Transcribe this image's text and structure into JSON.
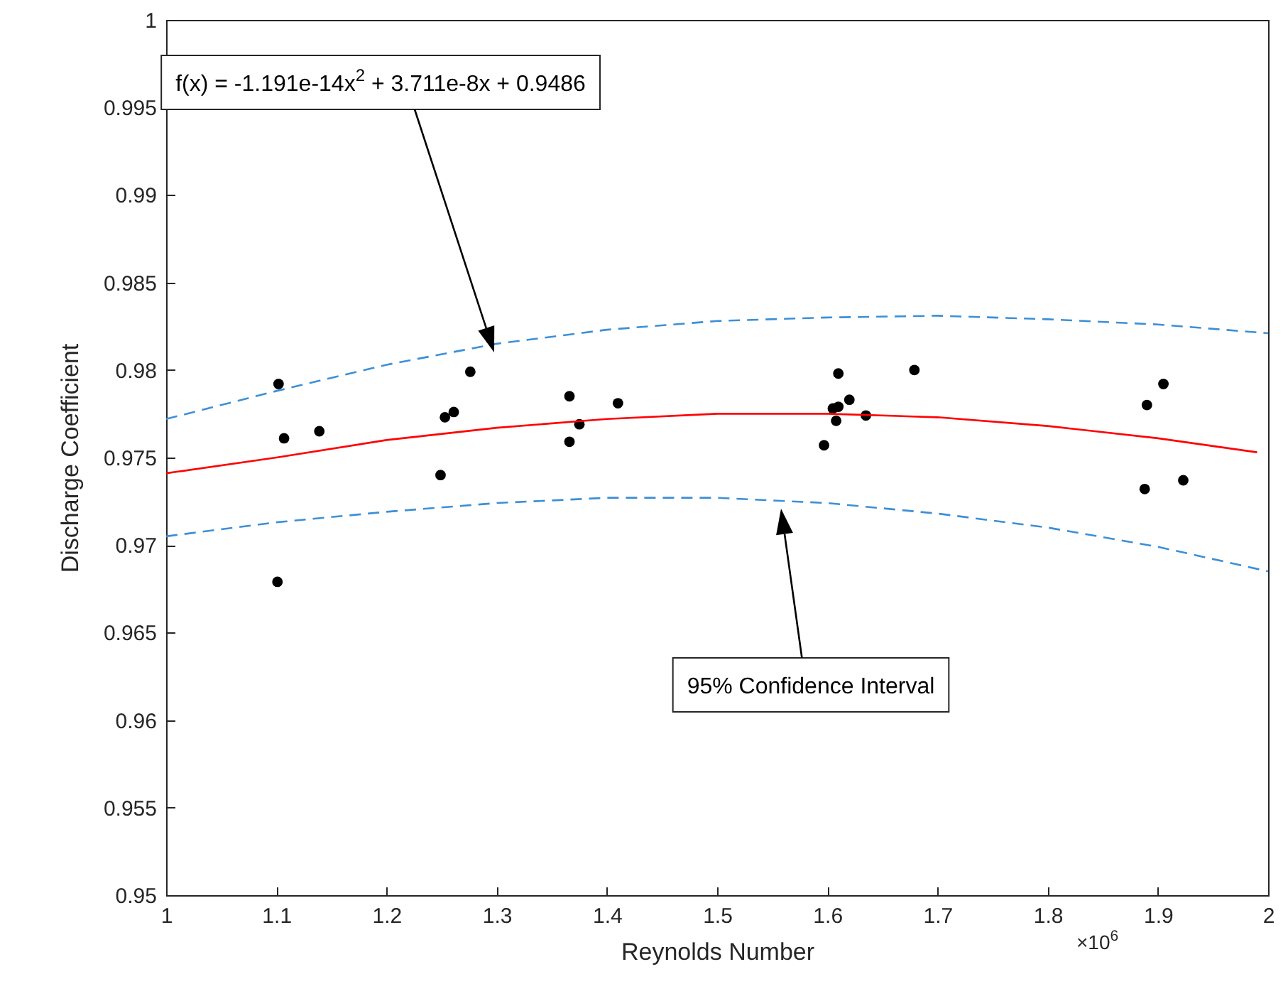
{
  "chart_data": {
    "type": "scatter",
    "xlabel": "Reynolds Number",
    "ylabel": "Discharge Coefficient",
    "xlim": [
      1,
      2
    ],
    "xticks": [
      1,
      1.1,
      1.2,
      1.3,
      1.4,
      1.5,
      1.6,
      1.7,
      1.8,
      1.9,
      2
    ],
    "ylim": [
      0.95,
      1
    ],
    "yticks": [
      0.95,
      0.955,
      0.96,
      0.965,
      0.97,
      0.975,
      0.98,
      0.985,
      0.99,
      0.995,
      1
    ],
    "grid": false,
    "series": [
      {
        "type": "scatter",
        "color": "#000000",
        "marker": "circle",
        "x": [
          1.102,
          1.107,
          1.139,
          1.101,
          1.249,
          1.253,
          1.261,
          1.276,
          1.366,
          1.366,
          1.375,
          1.41,
          1.597,
          1.605,
          1.608,
          1.61,
          1.61,
          1.62,
          1.635,
          1.679,
          1.888,
          1.89,
          1.905,
          1.923
        ],
        "values": [
          0.9792,
          0.9761,
          0.9765,
          0.9679,
          0.974,
          0.9773,
          0.9776,
          0.9799,
          0.9785,
          0.9759,
          0.9769,
          0.9781,
          0.9757,
          0.9778,
          0.9771,
          0.9779,
          0.9798,
          0.9783,
          0.9774,
          0.98,
          0.9732,
          0.978,
          0.9792,
          0.9737
        ]
      },
      {
        "type": "line",
        "color": "#ff0000",
        "line_style": "solid",
        "x": [
          1,
          1.1,
          1.2,
          1.3,
          1.4,
          1.5,
          1.6,
          1.7,
          1.8,
          1.9,
          1.99
        ],
        "values": [
          0.9741,
          0.975,
          0.976,
          0.9767,
          0.9772,
          0.9775,
          0.9775,
          0.9773,
          0.9768,
          0.9761,
          0.9753
        ]
      },
      {
        "type": "line",
        "color": "#3d8fd6",
        "line_style": "dashed",
        "x": [
          1,
          1.1,
          1.2,
          1.3,
          1.4,
          1.5,
          1.6,
          1.7,
          1.8,
          1.9,
          2
        ],
        "values": [
          0.9772,
          0.9788,
          0.9803,
          0.9815,
          0.9823,
          0.9828,
          0.983,
          0.9831,
          0.9829,
          0.9826,
          0.9821
        ]
      },
      {
        "type": "line",
        "color": "#3d8fd6",
        "line_style": "dashed",
        "x": [
          1,
          1.1,
          1.2,
          1.3,
          1.4,
          1.5,
          1.6,
          1.7,
          1.8,
          1.9,
          2
        ],
        "values": [
          0.9705,
          0.9713,
          0.9719,
          0.9724,
          0.9727,
          0.9727,
          0.9724,
          0.9718,
          0.971,
          0.9699,
          0.9685
        ]
      }
    ],
    "annotations": [
      "f(x) = -1.191e-14x$^{2}$ + 3.711e-8x + 0.9486",
      "95% Confidence Interval",
      "×10$^{6}$"
    ]
  }
}
